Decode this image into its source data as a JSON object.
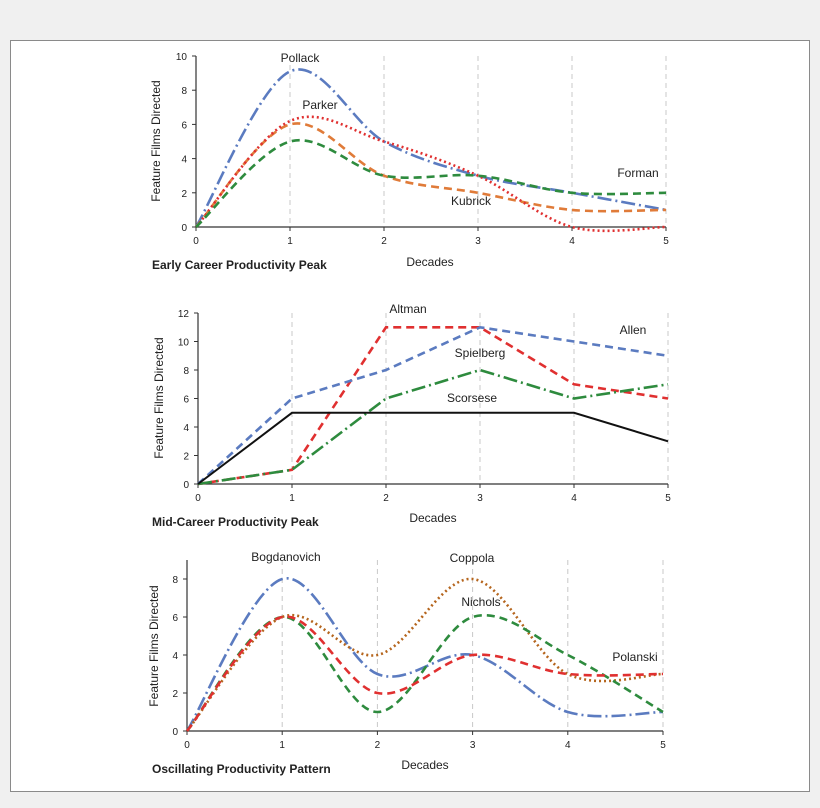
{
  "chart_data": [
    {
      "type": "line",
      "title": "Early Career Productivity Peak",
      "xlabel": "Decades",
      "ylabel": "Feature Films Directed",
      "xlim": [
        0,
        5
      ],
      "ylim": [
        0,
        10
      ],
      "xticks": [
        "0",
        "1",
        "2",
        "3",
        "4",
        "5"
      ],
      "yticks": [
        "0",
        "2",
        "4",
        "6",
        "8",
        "10"
      ],
      "grid": "vertical dashed",
      "series": [
        {
          "name": "Pollack",
          "color": "#5b7bc0",
          "style": "dash-dot",
          "x": [
            0,
            1,
            2,
            3,
            4,
            5
          ],
          "y": [
            0,
            9.1,
            5,
            3,
            2,
            1
          ]
        },
        {
          "name": "Parker",
          "color": "#e07b39",
          "style": "dashed",
          "x": [
            0,
            1,
            2,
            3,
            4,
            5
          ],
          "y": [
            0,
            6,
            3,
            2,
            1,
            1
          ]
        },
        {
          "name": "Kubrick",
          "color": "#e03030",
          "style": "dotted",
          "x": [
            0,
            1,
            2,
            3,
            4,
            5
          ],
          "y": [
            0,
            6.2,
            5,
            3,
            0,
            0
          ]
        },
        {
          "name": "Forman",
          "color": "#2e8b3e",
          "style": "dashed",
          "x": [
            0,
            1,
            2,
            3,
            4,
            5
          ],
          "y": [
            0,
            5,
            3,
            3,
            2,
            2
          ]
        }
      ]
    },
    {
      "type": "line",
      "title": "Mid-Career Productivity Peak",
      "xlabel": "Decades",
      "ylabel": "Feature Films Directed",
      "xlim": [
        0,
        5
      ],
      "ylim": [
        0,
        12
      ],
      "xticks": [
        "0",
        "1",
        "2",
        "3",
        "4",
        "5"
      ],
      "yticks": [
        "0",
        "2",
        "4",
        "6",
        "8",
        "10",
        "12"
      ],
      "grid": "vertical dashed",
      "series": [
        {
          "name": "Altman",
          "color": "#e03030",
          "style": "dashed",
          "x": [
            0,
            1,
            2,
            3,
            4,
            5
          ],
          "y": [
            0,
            1,
            11,
            11,
            7,
            6
          ]
        },
        {
          "name": "Allen",
          "color": "#5b7bc0",
          "style": "dashed",
          "x": [
            0,
            1,
            2,
            3,
            4,
            5
          ],
          "y": [
            0,
            6,
            8,
            11,
            10,
            9
          ]
        },
        {
          "name": "Spielberg",
          "color": "#2e8b3e",
          "style": "dash-dot",
          "x": [
            0,
            1,
            2,
            3,
            4,
            5
          ],
          "y": [
            0,
            1,
            6,
            8,
            6,
            7
          ]
        },
        {
          "name": "Scorsese",
          "color": "#111111",
          "style": "solid",
          "x": [
            0,
            1,
            2,
            3,
            4,
            5
          ],
          "y": [
            0,
            5,
            5,
            5,
            5,
            3
          ]
        }
      ]
    },
    {
      "type": "line",
      "title": "Oscillating Productivity Pattern",
      "xlabel": "Decades",
      "ylabel": "Feature Films Directed",
      "xlim": [
        0,
        5
      ],
      "ylim": [
        0,
        9
      ],
      "xticks": [
        "0",
        "1",
        "2",
        "3",
        "4",
        "5"
      ],
      "yticks": [
        "0",
        "2",
        "4",
        "6",
        "8"
      ],
      "grid": "vertical dashed",
      "series": [
        {
          "name": "Bogdanovich",
          "color": "#5b7bc0",
          "style": "dash-dot",
          "x": [
            0,
            1,
            2,
            3,
            4,
            5
          ],
          "y": [
            0,
            8,
            3,
            4,
            1,
            1
          ]
        },
        {
          "name": "Coppola",
          "color": "#b5651d",
          "style": "dotted",
          "x": [
            0,
            1,
            2,
            3,
            4,
            5
          ],
          "y": [
            0,
            6,
            4,
            8,
            3,
            3
          ]
        },
        {
          "name": "Nichols",
          "color": "#2e8b3e",
          "style": "dashed",
          "x": [
            0,
            1,
            2,
            3,
            4,
            5
          ],
          "y": [
            0,
            6,
            1,
            6,
            4,
            1
          ]
        },
        {
          "name": "Polanski",
          "color": "#e03030",
          "style": "dashed",
          "x": [
            0,
            1,
            2,
            3,
            4,
            5
          ],
          "y": [
            0,
            6,
            2,
            4,
            3,
            3
          ]
        }
      ]
    }
  ]
}
